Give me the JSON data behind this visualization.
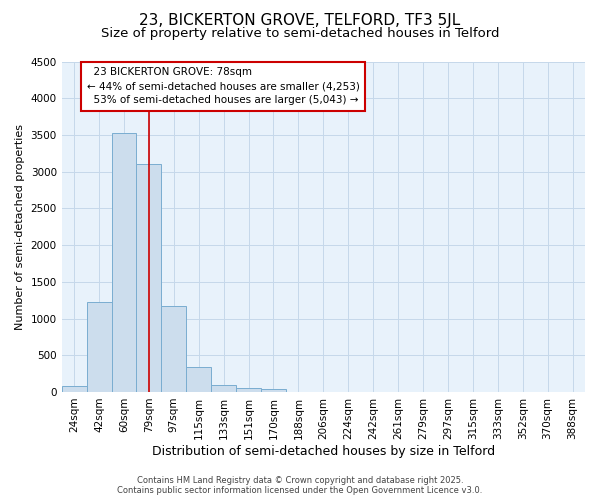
{
  "title": "23, BICKERTON GROVE, TELFORD, TF3 5JL",
  "subtitle": "Size of property relative to semi-detached houses in Telford",
  "xlabel": "Distribution of semi-detached houses by size in Telford",
  "ylabel": "Number of semi-detached properties",
  "bin_labels": [
    "24sqm",
    "42sqm",
    "60sqm",
    "79sqm",
    "97sqm",
    "115sqm",
    "133sqm",
    "151sqm",
    "170sqm",
    "188sqm",
    "206sqm",
    "224sqm",
    "242sqm",
    "261sqm",
    "279sqm",
    "297sqm",
    "315sqm",
    "333sqm",
    "352sqm",
    "370sqm",
    "388sqm"
  ],
  "bar_values": [
    75,
    1230,
    3520,
    3110,
    1170,
    340,
    95,
    55,
    35,
    0,
    0,
    0,
    0,
    0,
    0,
    0,
    0,
    0,
    0,
    0,
    0
  ],
  "bar_color": "#ccdded",
  "bar_edge_color": "#7aadd0",
  "property_line_label": "23 BICKERTON GROVE: 78sqm",
  "pct_smaller": 44,
  "pct_larger": 53,
  "count_smaller": 4253,
  "count_larger": 5043,
  "annotation_box_color": "#ffffff",
  "annotation_box_edge": "#cc0000",
  "red_line_color": "#cc0000",
  "ylim": [
    0,
    4500
  ],
  "yticks": [
    0,
    500,
    1000,
    1500,
    2000,
    2500,
    3000,
    3500,
    4000,
    4500
  ],
  "footer_line1": "Contains HM Land Registry data © Crown copyright and database right 2025.",
  "footer_line2": "Contains public sector information licensed under the Open Government Licence v3.0.",
  "bg_color": "#ffffff",
  "plot_bg_color": "#e8f2fb",
  "grid_color": "#c5d8ea",
  "title_fontsize": 11,
  "subtitle_fontsize": 9.5,
  "xlabel_fontsize": 9,
  "ylabel_fontsize": 8,
  "tick_fontsize": 7.5,
  "ann_fontsize": 7.5,
  "footer_fontsize": 6
}
